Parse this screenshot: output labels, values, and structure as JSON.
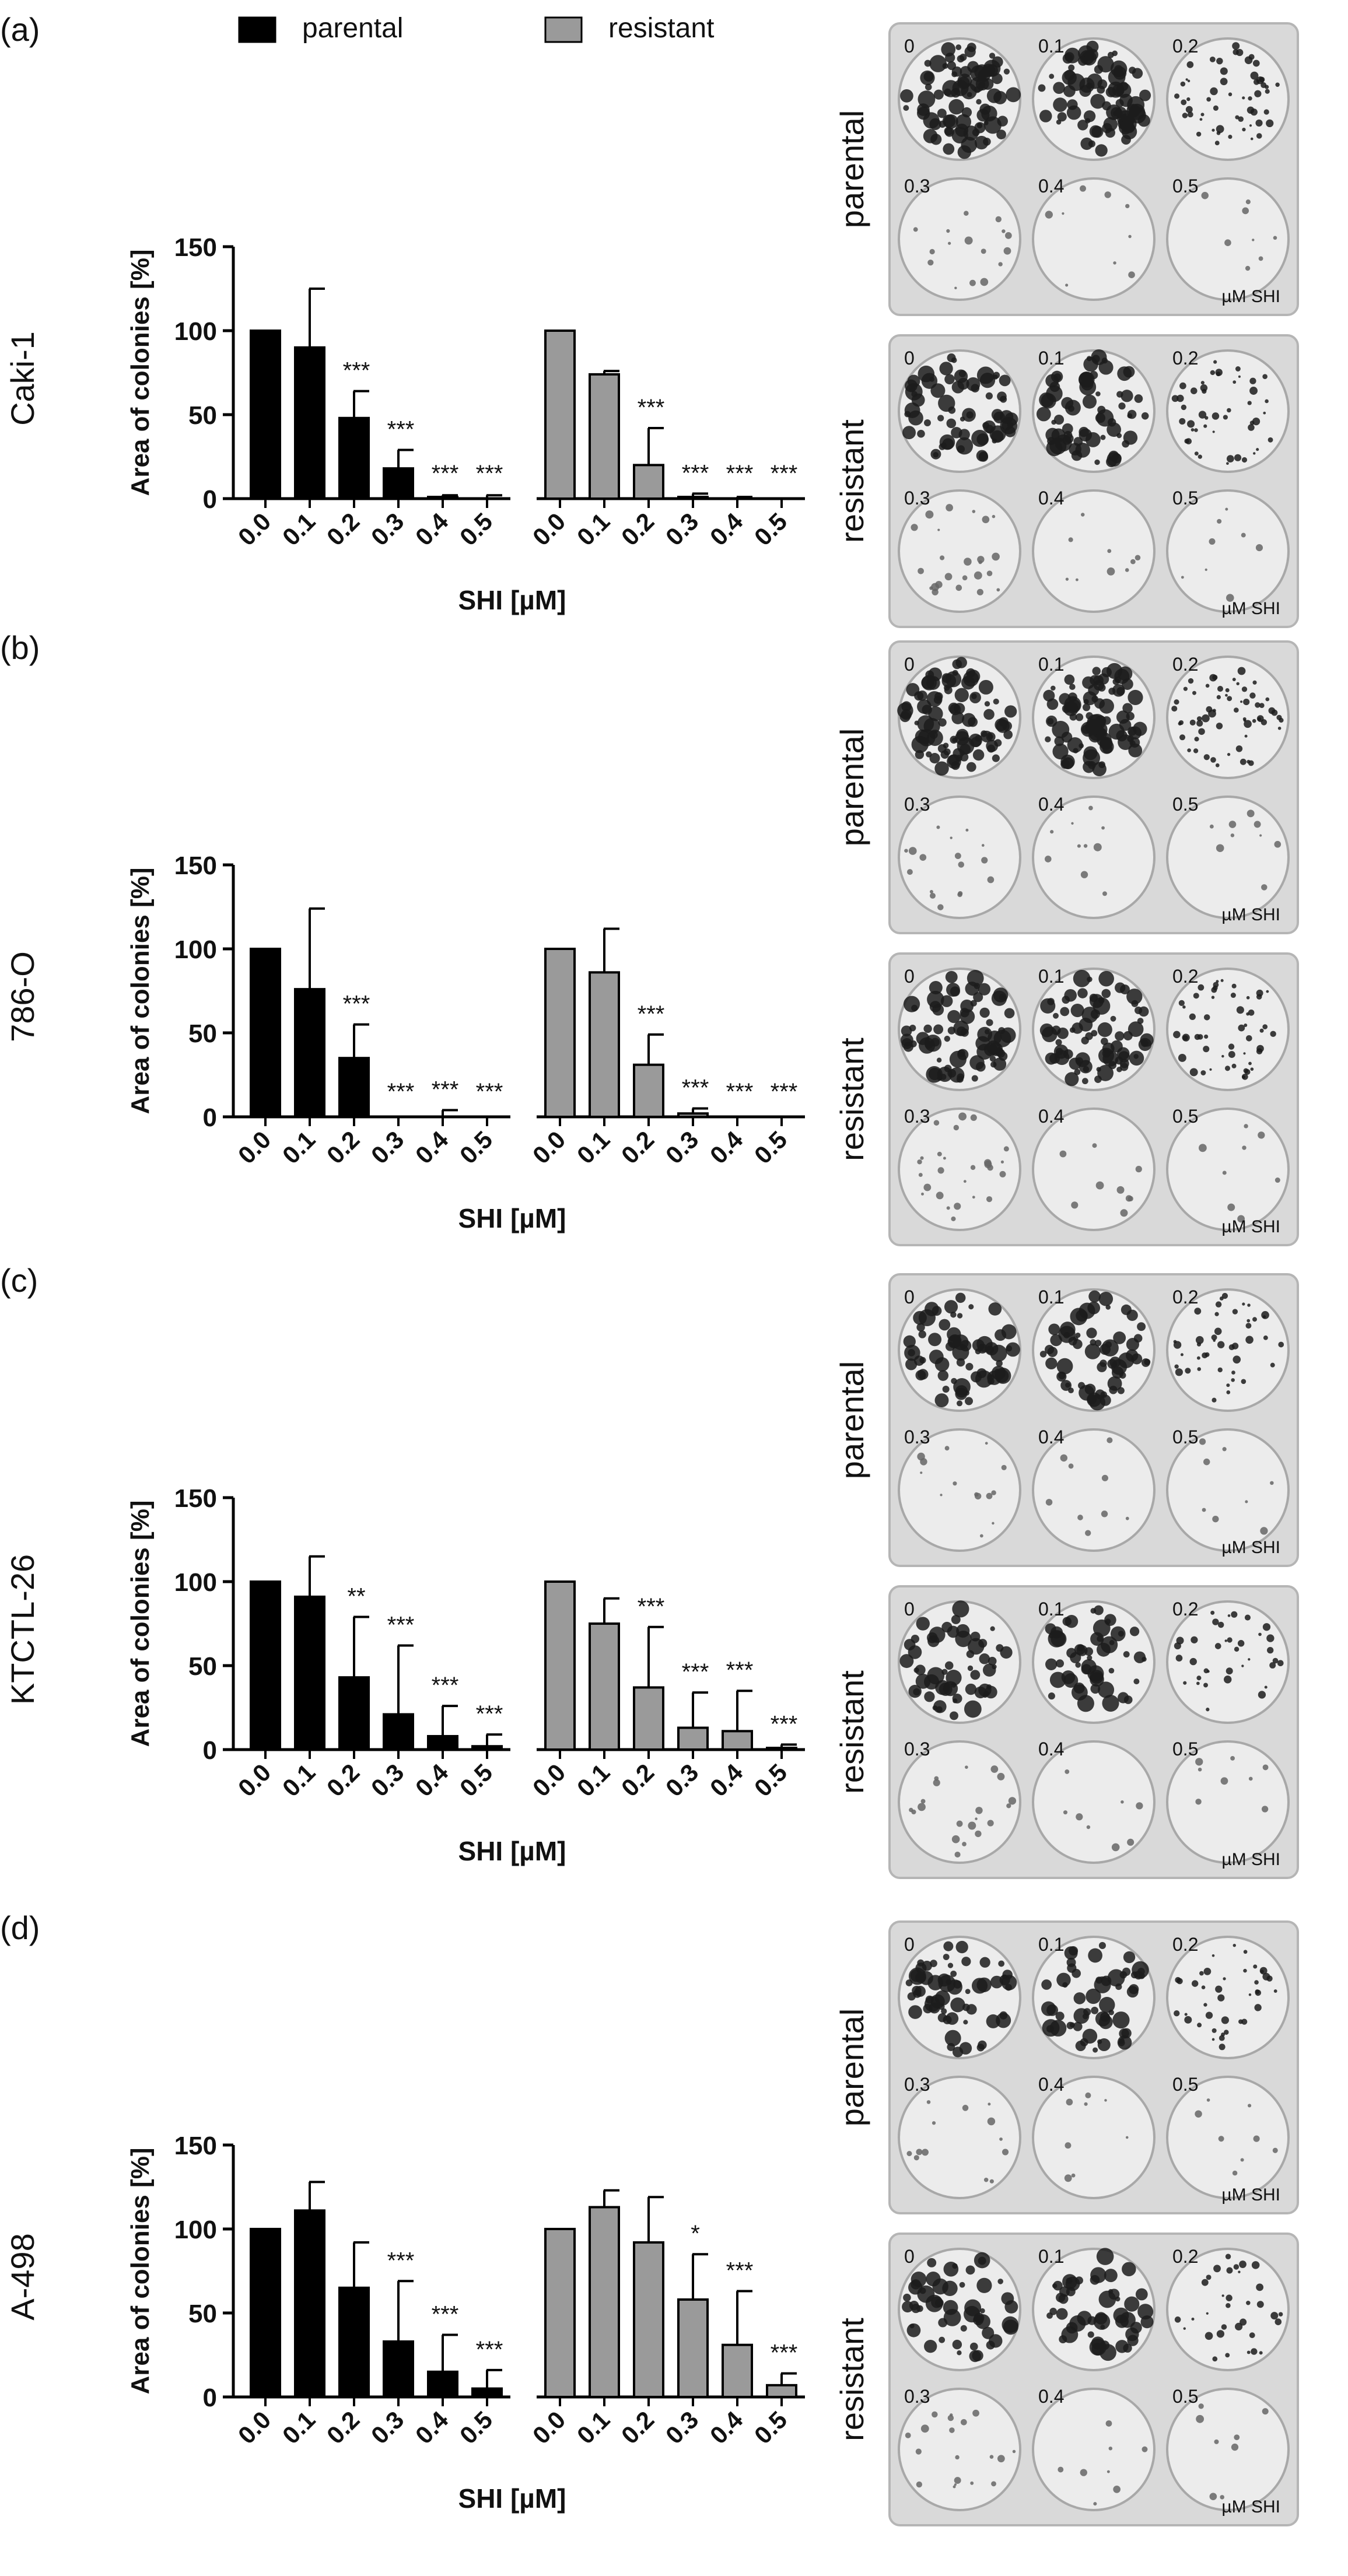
{
  "legend": [
    {
      "name": "parental",
      "color": "#000000"
    },
    {
      "name": "resistant",
      "color": "#9a9a9a"
    }
  ],
  "colors": {
    "parental": "#000000",
    "resistant": "#9a9a9a",
    "axis": "#000000",
    "plate": "#dcdcdc"
  },
  "plate_labels": {
    "wells": [
      "0",
      "0.1",
      "0.2",
      "0.3",
      "0.4",
      "0.5"
    ],
    "unit": "µM SHI",
    "row_labels": [
      "parental",
      "resistant"
    ]
  },
  "panels": [
    {
      "letter": "(a)",
      "cell_line": "Caki-1"
    },
    {
      "letter": "(b)",
      "cell_line": "786-O"
    },
    {
      "letter": "(c)",
      "cell_line": "KTCTL-26"
    },
    {
      "letter": "(d)",
      "cell_line": "A-498"
    }
  ],
  "chart_data": [
    {
      "type": "bar",
      "title": "",
      "xlabel": "SHI [µM]",
      "ylabel": "Area of colonies [%]",
      "ylim": [
        0,
        150
      ],
      "yticks": [
        "0",
        "50",
        "100",
        "150"
      ],
      "categories": [
        "0.0",
        "0.1",
        "0.2",
        "0.3",
        "0.4",
        "0.5"
      ],
      "series": [
        {
          "name": "parental",
          "values": [
            100,
            90,
            48,
            18,
            1,
            0
          ],
          "errors": [
            0,
            35,
            16,
            11,
            1,
            2
          ],
          "significance": [
            "",
            "",
            "***",
            "***",
            "***",
            "***"
          ]
        },
        {
          "name": "resistant",
          "values": [
            100,
            74,
            20,
            1,
            0,
            0
          ],
          "errors": [
            0,
            2,
            22,
            2,
            1,
            0
          ],
          "significance": [
            "",
            "",
            "***",
            "***",
            "***",
            "***"
          ]
        }
      ]
    },
    {
      "type": "bar",
      "title": "",
      "xlabel": "SHI [µM]",
      "ylabel": "Area of colonies [%]",
      "ylim": [
        0,
        150
      ],
      "yticks": [
        "0",
        "50",
        "100",
        "150"
      ],
      "categories": [
        "0.0",
        "0.1",
        "0.2",
        "0.3",
        "0.4",
        "0.5"
      ],
      "series": [
        {
          "name": "parental",
          "values": [
            100,
            76,
            35,
            0,
            0,
            0
          ],
          "errors": [
            0,
            48,
            20,
            0,
            4,
            0
          ],
          "significance": [
            "",
            "",
            "***",
            "***",
            "***",
            "***"
          ]
        },
        {
          "name": "resistant",
          "values": [
            100,
            86,
            31,
            2,
            0,
            0
          ],
          "errors": [
            0,
            26,
            18,
            3,
            0,
            0
          ],
          "significance": [
            "",
            "",
            "***",
            "***",
            "***",
            "***"
          ]
        }
      ]
    },
    {
      "type": "bar",
      "title": "",
      "xlabel": "SHI [µM]",
      "ylabel": "Area of colonies [%]",
      "ylim": [
        0,
        150
      ],
      "yticks": [
        "0",
        "50",
        "100",
        "150"
      ],
      "categories": [
        "0.0",
        "0.1",
        "0.2",
        "0.3",
        "0.4",
        "0.5"
      ],
      "series": [
        {
          "name": "parental",
          "values": [
            100,
            91,
            43,
            21,
            8,
            2
          ],
          "errors": [
            0,
            24,
            36,
            41,
            18,
            7
          ],
          "significance": [
            "",
            "",
            "**",
            "***",
            "***",
            "***"
          ]
        },
        {
          "name": "resistant",
          "values": [
            100,
            75,
            37,
            13,
            11,
            1
          ],
          "errors": [
            0,
            15,
            36,
            21,
            24,
            2
          ],
          "significance": [
            "",
            "",
            "***",
            "***",
            "***",
            "***"
          ]
        }
      ]
    },
    {
      "type": "bar",
      "title": "",
      "xlabel": "SHI [µM]",
      "ylabel": "Area of colonies [%]",
      "ylim": [
        0,
        150
      ],
      "yticks": [
        "0",
        "50",
        "100",
        "150"
      ],
      "categories": [
        "0.0",
        "0.1",
        "0.2",
        "0.3",
        "0.4",
        "0.5"
      ],
      "series": [
        {
          "name": "parental",
          "values": [
            100,
            111,
            65,
            33,
            15,
            5
          ],
          "errors": [
            0,
            17,
            27,
            36,
            22,
            11
          ],
          "significance": [
            "",
            "",
            "",
            "***",
            "***",
            "***"
          ]
        },
        {
          "name": "resistant",
          "values": [
            100,
            113,
            92,
            58,
            31,
            7
          ],
          "errors": [
            0,
            10,
            27,
            27,
            32,
            7
          ],
          "significance": [
            "",
            "",
            "",
            "*",
            "***",
            "***"
          ]
        }
      ]
    }
  ]
}
